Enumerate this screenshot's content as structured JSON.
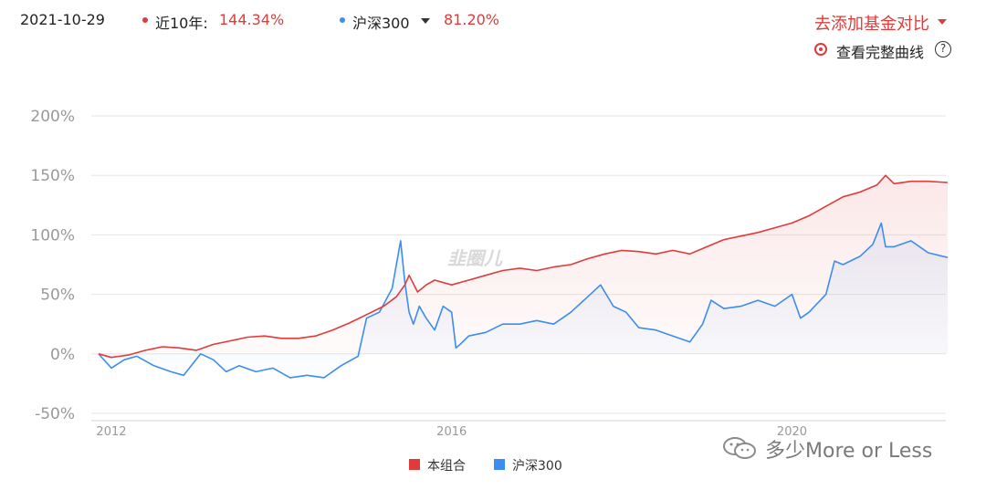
{
  "header": {
    "date": "2021-10-29",
    "series1_label": "近10年:",
    "series1_value": "144.34%",
    "series2_label": "沪深300",
    "series2_value": "81.20%",
    "add_compare_label": "去添加基金对比",
    "full_curve_label": "查看完整曲线",
    "help_glyph": "?"
  },
  "colors": {
    "portfolio": "#e03a3a",
    "index": "#3b8df0",
    "grid": "#e6e6e6",
    "tick_text": "#999999"
  },
  "watermark": {
    "chart_watermark": "韭圈儿",
    "account_text": "多少More or Less",
    "icon": "wechat-icon"
  },
  "chart_data": {
    "type": "line",
    "xlabel": "",
    "ylabel": "",
    "x_range": [
      2011.85,
      2021.83
    ],
    "ylim": [
      -50,
      200
    ],
    "y_ticks": [
      200,
      150,
      100,
      50,
      0,
      -50
    ],
    "y_tick_labels": [
      "200%",
      "150%",
      "100%",
      "50%",
      "0%",
      "-50%"
    ],
    "x_ticks": [
      2012,
      2016,
      2020
    ],
    "x_tick_labels": [
      "2012",
      "2016",
      "2020"
    ],
    "grid": true,
    "legend_position": "bottom-center",
    "series": [
      {
        "name": "本组合",
        "color": "#e03a3a",
        "x": [
          2011.85,
          2012.0,
          2012.2,
          2012.4,
          2012.6,
          2012.8,
          2013.0,
          2013.2,
          2013.4,
          2013.6,
          2013.8,
          2014.0,
          2014.2,
          2014.4,
          2014.6,
          2014.8,
          2015.0,
          2015.2,
          2015.35,
          2015.45,
          2015.5,
          2015.6,
          2015.7,
          2015.8,
          2016.0,
          2016.2,
          2016.4,
          2016.6,
          2016.8,
          2017.0,
          2017.2,
          2017.4,
          2017.6,
          2017.8,
          2018.0,
          2018.2,
          2018.4,
          2018.6,
          2018.8,
          2019.0,
          2019.2,
          2019.4,
          2019.6,
          2019.8,
          2020.0,
          2020.2,
          2020.4,
          2020.6,
          2020.8,
          2021.0,
          2021.1,
          2021.2,
          2021.4,
          2021.6,
          2021.83
        ],
        "values": [
          0,
          -3,
          -1,
          3,
          6,
          5,
          3,
          8,
          11,
          14,
          15,
          13,
          13,
          15,
          20,
          26,
          33,
          40,
          48,
          58,
          66,
          52,
          58,
          62,
          58,
          62,
          66,
          70,
          72,
          70,
          73,
          75,
          80,
          84,
          87,
          86,
          84,
          87,
          84,
          90,
          96,
          99,
          102,
          106,
          110,
          116,
          124,
          132,
          136,
          142,
          150,
          143,
          145,
          145,
          144
        ]
      },
      {
        "name": "沪深300",
        "color": "#3b8df0",
        "x": [
          2011.85,
          2012.0,
          2012.15,
          2012.3,
          2012.5,
          2012.7,
          2012.85,
          2013.05,
          2013.2,
          2013.35,
          2013.5,
          2013.7,
          2013.9,
          2014.1,
          2014.3,
          2014.5,
          2014.7,
          2014.9,
          2015.0,
          2015.15,
          2015.3,
          2015.4,
          2015.45,
          2015.5,
          2015.55,
          2015.62,
          2015.7,
          2015.8,
          2015.9,
          2016.0,
          2016.05,
          2016.1,
          2016.2,
          2016.4,
          2016.6,
          2016.8,
          2017.0,
          2017.2,
          2017.4,
          2017.6,
          2017.75,
          2017.9,
          2018.05,
          2018.2,
          2018.4,
          2018.6,
          2018.8,
          2018.95,
          2019.05,
          2019.2,
          2019.4,
          2019.6,
          2019.8,
          2020.0,
          2020.1,
          2020.2,
          2020.4,
          2020.5,
          2020.6,
          2020.8,
          2020.95,
          2021.05,
          2021.1,
          2021.2,
          2021.4,
          2021.6,
          2021.83
        ],
        "values": [
          0,
          -12,
          -5,
          -2,
          -10,
          -15,
          -18,
          0,
          -5,
          -15,
          -10,
          -15,
          -12,
          -20,
          -18,
          -20,
          -10,
          -2,
          30,
          35,
          55,
          95,
          60,
          35,
          25,
          40,
          30,
          20,
          40,
          35,
          5,
          8,
          15,
          18,
          25,
          25,
          28,
          25,
          35,
          48,
          58,
          40,
          35,
          22,
          20,
          15,
          10,
          25,
          45,
          38,
          40,
          45,
          40,
          50,
          30,
          35,
          50,
          78,
          75,
          82,
          92,
          110,
          90,
          90,
          95,
          85,
          81
        ]
      }
    ]
  },
  "legend": {
    "items": [
      {
        "label": "本组合",
        "color": "#e03a3a"
      },
      {
        "label": "沪深300",
        "color": "#3b8df0"
      }
    ]
  }
}
